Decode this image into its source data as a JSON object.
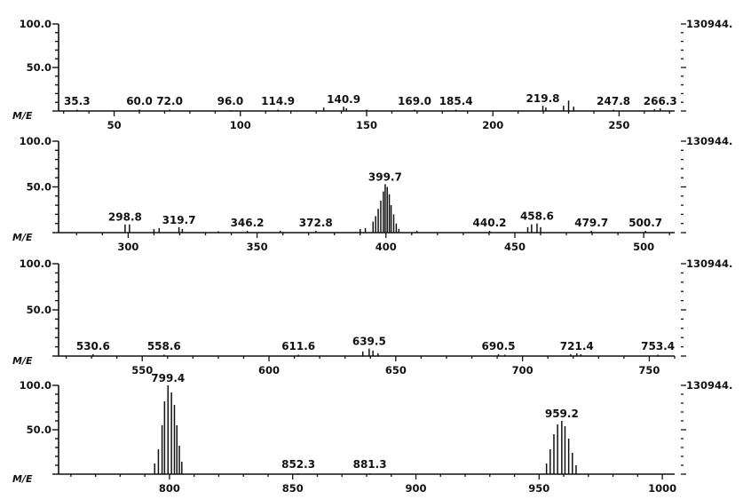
{
  "chart_data": [
    {
      "type": "bar",
      "title": "",
      "xlabel": "M/E",
      "xlim": [
        28,
        272
      ],
      "ylim": [
        0,
        100
      ],
      "y_ticks": [
        "100.0",
        "50.0"
      ],
      "right_label": "130944.",
      "x_ticks": [
        50,
        100,
        150,
        200,
        250
      ],
      "peak_labels": [
        {
          "x": 35.3,
          "text": "35.3"
        },
        {
          "x": 60.0,
          "text": "60.0"
        },
        {
          "x": 72.0,
          "text": "72.0"
        },
        {
          "x": 96.0,
          "text": "96.0"
        },
        {
          "x": 114.9,
          "text": "114.9"
        },
        {
          "x": 140.9,
          "text": "140.9"
        },
        {
          "x": 169.0,
          "text": "169.0"
        },
        {
          "x": 185.4,
          "text": "185.4"
        },
        {
          "x": 219.8,
          "text": "219.8"
        },
        {
          "x": 247.8,
          "text": "247.8"
        },
        {
          "x": 266.3,
          "text": "266.3"
        }
      ],
      "peaks": [
        [
          35.3,
          1.5
        ],
        [
          60,
          1.5
        ],
        [
          72,
          1.5
        ],
        [
          96,
          1
        ],
        [
          114.9,
          1.5
        ],
        [
          133,
          4
        ],
        [
          140.9,
          5
        ],
        [
          142,
          3
        ],
        [
          150,
          1.5
        ],
        [
          169,
          1.5
        ],
        [
          185.4,
          1.5
        ],
        [
          219.8,
          6
        ],
        [
          221,
          4
        ],
        [
          228,
          6
        ],
        [
          230,
          12
        ],
        [
          232,
          5
        ],
        [
          247.8,
          1.5
        ],
        [
          264,
          2
        ],
        [
          266.3,
          3
        ]
      ]
    },
    {
      "type": "bar",
      "title": "",
      "xlabel": "M/E",
      "xlim": [
        273,
        512
      ],
      "ylim": [
        0,
        100
      ],
      "y_ticks": [
        "100.0",
        "50.0"
      ],
      "right_label": "130944.",
      "x_ticks": [
        300,
        350,
        400,
        450,
        500
      ],
      "peak_labels": [
        {
          "x": 298.8,
          "text": "298.8"
        },
        {
          "x": 319.7,
          "text": "319.7"
        },
        {
          "x": 346.2,
          "text": "346.2"
        },
        {
          "x": 372.8,
          "text": "372.8"
        },
        {
          "x": 399.7,
          "text": "399.7"
        },
        {
          "x": 440.2,
          "text": "440.2"
        },
        {
          "x": 458.6,
          "text": "458.6"
        },
        {
          "x": 479.7,
          "text": "479.7"
        },
        {
          "x": 500.7,
          "text": "500.7"
        }
      ],
      "peaks": [
        [
          298.8,
          9
        ],
        [
          300.5,
          9
        ],
        [
          310,
          4
        ],
        [
          312,
          5
        ],
        [
          319.7,
          6
        ],
        [
          321,
          4
        ],
        [
          335,
          1.5
        ],
        [
          346.2,
          2
        ],
        [
          359,
          2
        ],
        [
          372.8,
          2
        ],
        [
          390,
          4
        ],
        [
          392,
          5
        ],
        [
          395,
          12
        ],
        [
          396,
          18
        ],
        [
          397,
          26
        ],
        [
          398,
          35
        ],
        [
          399,
          45
        ],
        [
          399.7,
          53
        ],
        [
          400.5,
          50
        ],
        [
          401.3,
          42
        ],
        [
          402,
          30
        ],
        [
          403,
          20
        ],
        [
          404,
          10
        ],
        [
          405,
          4
        ],
        [
          412,
          2
        ],
        [
          440.2,
          2
        ],
        [
          455,
          6
        ],
        [
          456.5,
          9
        ],
        [
          458.6,
          10
        ],
        [
          460,
          6
        ],
        [
          479.7,
          2
        ],
        [
          500.7,
          2
        ]
      ]
    },
    {
      "type": "bar",
      "title": "",
      "xlabel": "M/E",
      "xlim": [
        517,
        760
      ],
      "ylim": [
        0,
        100
      ],
      "y_ticks": [
        "100.0",
        "50.0"
      ],
      "right_label": "130944.",
      "x_ticks": [
        550,
        600,
        650,
        700,
        750
      ],
      "peak_labels": [
        {
          "x": 530.6,
          "text": "530.6"
        },
        {
          "x": 558.6,
          "text": "558.6"
        },
        {
          "x": 611.6,
          "text": "611.6"
        },
        {
          "x": 639.5,
          "text": "639.5"
        },
        {
          "x": 690.5,
          "text": "690.5"
        },
        {
          "x": 721.4,
          "text": "721.4"
        },
        {
          "x": 753.4,
          "text": "753.4"
        }
      ],
      "peaks": [
        [
          530.6,
          2
        ],
        [
          558.6,
          1.5
        ],
        [
          611.6,
          1.5
        ],
        [
          637,
          5
        ],
        [
          639.5,
          8
        ],
        [
          641,
          6
        ],
        [
          643,
          3
        ],
        [
          690.5,
          2
        ],
        [
          693,
          1.5
        ],
        [
          719,
          2
        ],
        [
          721.4,
          3
        ],
        [
          723,
          2
        ],
        [
          753.4,
          1.5
        ]
      ]
    },
    {
      "type": "bar",
      "title": "",
      "xlabel": "M/E",
      "xlim": [
        755,
        1005
      ],
      "ylim": [
        0,
        100
      ],
      "y_ticks": [
        "100.0",
        "50.0"
      ],
      "right_label": "130944.",
      "x_ticks": [
        800,
        850,
        900,
        950,
        1000
      ],
      "peak_labels": [
        {
          "x": 799.4,
          "text": "799.4"
        },
        {
          "x": 852.3,
          "text": "852.3"
        },
        {
          "x": 881.3,
          "text": "881.3"
        },
        {
          "x": 959.2,
          "text": "959.2"
        }
      ],
      "peaks": [
        [
          794,
          12
        ],
        [
          795.5,
          28
        ],
        [
          797,
          55
        ],
        [
          798,
          82
        ],
        [
          799.4,
          100
        ],
        [
          800.8,
          92
        ],
        [
          802,
          78
        ],
        [
          803,
          55
        ],
        [
          804,
          32
        ],
        [
          805,
          14
        ],
        [
          852.3,
          1
        ],
        [
          881.3,
          1
        ],
        [
          953,
          12
        ],
        [
          954.5,
          28
        ],
        [
          956,
          45
        ],
        [
          957.5,
          56
        ],
        [
          959.2,
          60
        ],
        [
          960.5,
          54
        ],
        [
          962,
          40
        ],
        [
          963.5,
          24
        ],
        [
          965,
          10
        ]
      ]
    }
  ]
}
